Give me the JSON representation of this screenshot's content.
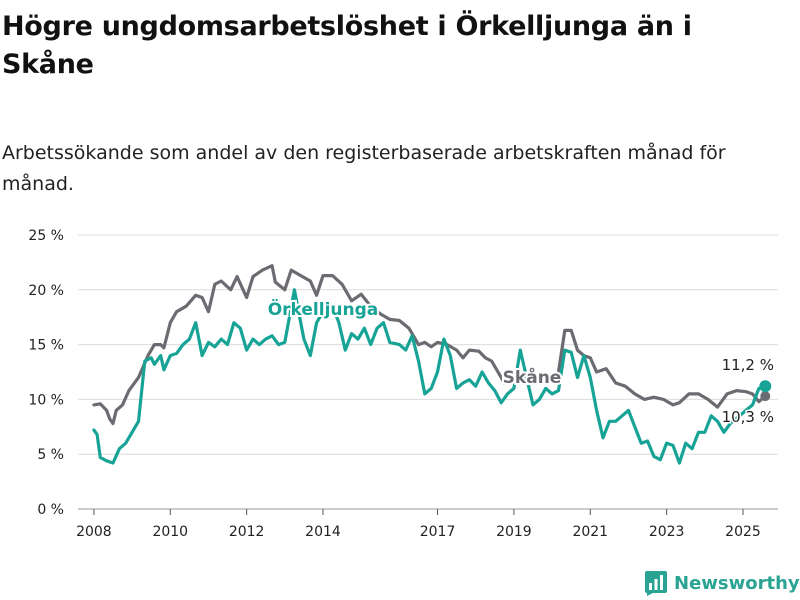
{
  "title": "Högre ungdomsarbetslöshet i Örkelljunga än i Skåne",
  "subtitle": "Arbetssökande som andel av den registerbaserade arbetskraften månad för månad.",
  "brand": {
    "name": "Newsworthy"
  },
  "colors": {
    "orkelljunga": "#17a396",
    "skane": "#6b6b72",
    "grid": "#dcdcdc",
    "text": "#222222"
  },
  "chart_data": {
    "type": "line",
    "ylim": [
      0,
      25
    ],
    "yticks": [
      {
        "value": 0,
        "label": "0 %"
      },
      {
        "value": 5,
        "label": "5 %"
      },
      {
        "value": 10,
        "label": "10 %"
      },
      {
        "value": 15,
        "label": "15 %"
      },
      {
        "value": 20,
        "label": "20 %"
      },
      {
        "value": 25,
        "label": "25 %"
      }
    ],
    "xlim": [
      "2007-08",
      "2025-12"
    ],
    "xticks": [
      "2008",
      "2010",
      "2012",
      "2014",
      "2017",
      "2019",
      "2021",
      "2023",
      "2025"
    ],
    "grid": true,
    "series": [
      {
        "name": "Skåne",
        "label_color": "skane",
        "end_label": "10,3 %",
        "points": [
          [
            "2008-01",
            9.5
          ],
          [
            "2008-03",
            9.6
          ],
          [
            "2008-05",
            9.0
          ],
          [
            "2008-06",
            8.2
          ],
          [
            "2008-07",
            7.8
          ],
          [
            "2008-08",
            9.0
          ],
          [
            "2008-10",
            9.5
          ],
          [
            "2008-12",
            10.8
          ],
          [
            "2009-03",
            12.0
          ],
          [
            "2009-06",
            14.0
          ],
          [
            "2009-08",
            15.0
          ],
          [
            "2009-10",
            15.0
          ],
          [
            "2009-11",
            14.7
          ],
          [
            "2010-01",
            17.0
          ],
          [
            "2010-03",
            18.0
          ],
          [
            "2010-06",
            18.5
          ],
          [
            "2010-09",
            19.5
          ],
          [
            "2010-11",
            19.3
          ],
          [
            "2011-01",
            18.0
          ],
          [
            "2011-03",
            20.5
          ],
          [
            "2011-05",
            20.8
          ],
          [
            "2011-08",
            20.0
          ],
          [
            "2011-10",
            21.2
          ],
          [
            "2012-01",
            19.3
          ],
          [
            "2012-03",
            21.2
          ],
          [
            "2012-06",
            21.8
          ],
          [
            "2012-09",
            22.2
          ],
          [
            "2012-10",
            20.7
          ],
          [
            "2013-01",
            20.0
          ],
          [
            "2013-03",
            21.8
          ],
          [
            "2013-06",
            21.3
          ],
          [
            "2013-09",
            20.8
          ],
          [
            "2013-11",
            19.5
          ],
          [
            "2014-01",
            21.3
          ],
          [
            "2014-04",
            21.3
          ],
          [
            "2014-07",
            20.5
          ],
          [
            "2014-10",
            19.0
          ],
          [
            "2015-01",
            19.6
          ],
          [
            "2015-04",
            18.5
          ],
          [
            "2015-07",
            17.8
          ],
          [
            "2015-10",
            17.3
          ],
          [
            "2016-01",
            17.2
          ],
          [
            "2016-04",
            16.5
          ],
          [
            "2016-07",
            15.0
          ],
          [
            "2016-09",
            15.2
          ],
          [
            "2016-11",
            14.8
          ],
          [
            "2017-01",
            15.2
          ],
          [
            "2017-04",
            15.0
          ],
          [
            "2017-07",
            14.5
          ],
          [
            "2017-09",
            13.8
          ],
          [
            "2017-11",
            14.5
          ],
          [
            "2018-02",
            14.4
          ],
          [
            "2018-04",
            13.8
          ],
          [
            "2018-06",
            13.5
          ],
          [
            "2018-08",
            12.5
          ],
          [
            "2018-10",
            11.5
          ],
          [
            "2018-12",
            12.5
          ],
          [
            "2019-02",
            12.7
          ],
          [
            "2019-05",
            11.8
          ],
          [
            "2019-07",
            11.5
          ],
          [
            "2019-10",
            12.0
          ],
          [
            "2020-01",
            11.8
          ],
          [
            "2020-03",
            12.5
          ],
          [
            "2020-05",
            16.3
          ],
          [
            "2020-07",
            16.3
          ],
          [
            "2020-09",
            14.5
          ],
          [
            "2020-11",
            14.0
          ],
          [
            "2021-01",
            13.8
          ],
          [
            "2021-03",
            12.5
          ],
          [
            "2021-06",
            12.8
          ],
          [
            "2021-09",
            11.5
          ],
          [
            "2021-12",
            11.2
          ],
          [
            "2022-03",
            10.5
          ],
          [
            "2022-06",
            10.0
          ],
          [
            "2022-09",
            10.2
          ],
          [
            "2022-12",
            10.0
          ],
          [
            "2023-03",
            9.5
          ],
          [
            "2023-05",
            9.7
          ],
          [
            "2023-08",
            10.5
          ],
          [
            "2023-11",
            10.5
          ],
          [
            "2024-02",
            10.0
          ],
          [
            "2024-05",
            9.3
          ],
          [
            "2024-08",
            10.5
          ],
          [
            "2024-11",
            10.8
          ],
          [
            "2025-02",
            10.7
          ],
          [
            "2025-04",
            10.5
          ],
          [
            "2025-06",
            9.8
          ],
          [
            "2025-08",
            10.3
          ]
        ]
      },
      {
        "name": "Örkelljunga",
        "label_color": "orkelljunga",
        "end_label": "11,2 %",
        "points": [
          [
            "2008-01",
            7.2
          ],
          [
            "2008-02",
            6.8
          ],
          [
            "2008-03",
            4.7
          ],
          [
            "2008-05",
            4.4
          ],
          [
            "2008-07",
            4.2
          ],
          [
            "2008-09",
            5.5
          ],
          [
            "2008-11",
            6.0
          ],
          [
            "2009-01",
            7.0
          ],
          [
            "2009-03",
            8.0
          ],
          [
            "2009-05",
            13.5
          ],
          [
            "2009-07",
            13.8
          ],
          [
            "2009-08",
            13.2
          ],
          [
            "2009-10",
            14.0
          ],
          [
            "2009-11",
            12.7
          ],
          [
            "2010-01",
            14.0
          ],
          [
            "2010-03",
            14.2
          ],
          [
            "2010-05",
            15.0
          ],
          [
            "2010-07",
            15.5
          ],
          [
            "2010-09",
            17.0
          ],
          [
            "2010-11",
            14.0
          ],
          [
            "2011-01",
            15.2
          ],
          [
            "2011-03",
            14.8
          ],
          [
            "2011-05",
            15.5
          ],
          [
            "2011-07",
            15.0
          ],
          [
            "2011-09",
            17.0
          ],
          [
            "2011-11",
            16.5
          ],
          [
            "2012-01",
            14.5
          ],
          [
            "2012-03",
            15.5
          ],
          [
            "2012-05",
            15.0
          ],
          [
            "2012-07",
            15.5
          ],
          [
            "2012-09",
            15.8
          ],
          [
            "2012-11",
            15.0
          ],
          [
            "2013-01",
            15.2
          ],
          [
            "2013-04",
            20.0
          ],
          [
            "2013-07",
            15.5
          ],
          [
            "2013-09",
            14.0
          ],
          [
            "2013-11",
            17.0
          ],
          [
            "2014-02",
            18.5
          ],
          [
            "2014-04",
            18.5
          ],
          [
            "2014-06",
            17.0
          ],
          [
            "2014-08",
            14.5
          ],
          [
            "2014-10",
            16.0
          ],
          [
            "2014-12",
            15.5
          ],
          [
            "2015-02",
            16.5
          ],
          [
            "2015-04",
            15.0
          ],
          [
            "2015-06",
            16.5
          ],
          [
            "2015-08",
            17.0
          ],
          [
            "2015-10",
            15.2
          ],
          [
            "2016-01",
            15.0
          ],
          [
            "2016-03",
            14.5
          ],
          [
            "2016-05",
            15.8
          ],
          [
            "2016-07",
            13.5
          ],
          [
            "2016-09",
            10.5
          ],
          [
            "2016-11",
            11.0
          ],
          [
            "2017-01",
            12.5
          ],
          [
            "2017-03",
            15.5
          ],
          [
            "2017-05",
            14.0
          ],
          [
            "2017-07",
            11.0
          ],
          [
            "2017-09",
            11.5
          ],
          [
            "2017-11",
            11.8
          ],
          [
            "2018-01",
            11.2
          ],
          [
            "2018-03",
            12.5
          ],
          [
            "2018-05",
            11.5
          ],
          [
            "2018-07",
            10.8
          ],
          [
            "2018-09",
            9.7
          ],
          [
            "2018-11",
            10.5
          ],
          [
            "2019-01",
            11.0
          ],
          [
            "2019-03",
            14.5
          ],
          [
            "2019-05",
            12.0
          ],
          [
            "2019-07",
            9.5
          ],
          [
            "2019-09",
            10.0
          ],
          [
            "2019-11",
            11.0
          ],
          [
            "2020-01",
            10.5
          ],
          [
            "2020-03",
            10.8
          ],
          [
            "2020-05",
            14.5
          ],
          [
            "2020-07",
            14.3
          ],
          [
            "2020-09",
            12.0
          ],
          [
            "2020-11",
            14.0
          ],
          [
            "2021-01",
            12.0
          ],
          [
            "2021-03",
            9.0
          ],
          [
            "2021-05",
            6.5
          ],
          [
            "2021-07",
            8.0
          ],
          [
            "2021-09",
            8.0
          ],
          [
            "2021-11",
            8.5
          ],
          [
            "2022-01",
            9.0
          ],
          [
            "2022-03",
            7.5
          ],
          [
            "2022-05",
            6.0
          ],
          [
            "2022-07",
            6.2
          ],
          [
            "2022-09",
            4.8
          ],
          [
            "2022-11",
            4.5
          ],
          [
            "2023-01",
            6.0
          ],
          [
            "2023-03",
            5.8
          ],
          [
            "2023-05",
            4.2
          ],
          [
            "2023-07",
            6.0
          ],
          [
            "2023-09",
            5.5
          ],
          [
            "2023-11",
            7.0
          ],
          [
            "2024-01",
            7.0
          ],
          [
            "2024-03",
            8.5
          ],
          [
            "2024-05",
            8.0
          ],
          [
            "2024-07",
            7.0
          ],
          [
            "2024-09",
            7.8
          ],
          [
            "2025-04",
            9.5
          ],
          [
            "2025-06",
            11.0
          ],
          [
            "2025-08",
            11.2
          ]
        ]
      }
    ]
  }
}
